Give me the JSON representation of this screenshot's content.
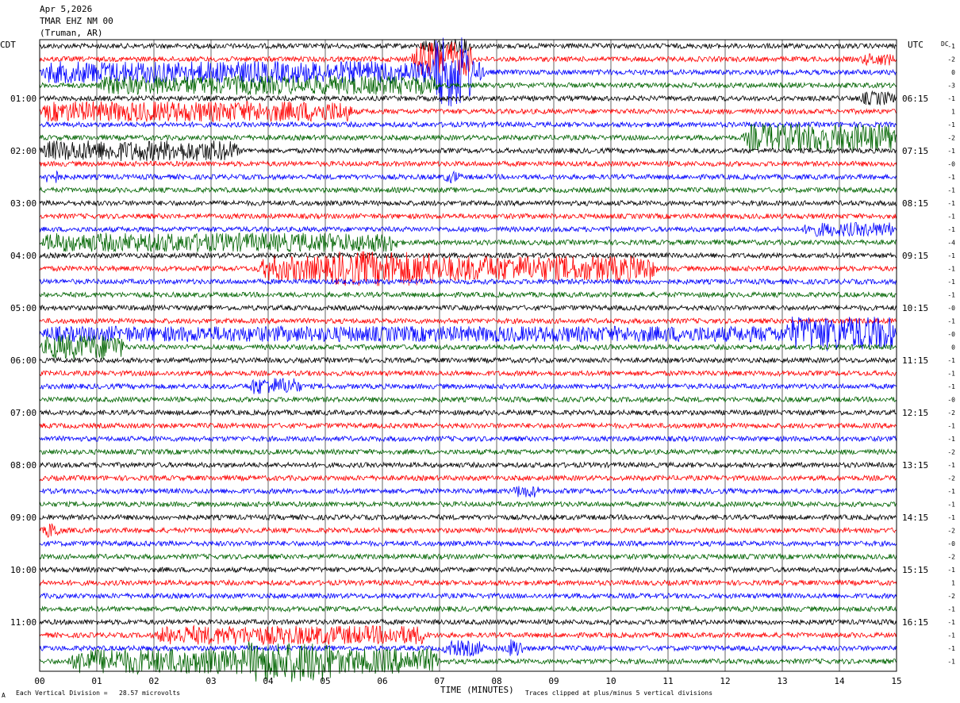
{
  "header": {
    "date": "Apr 5,2026",
    "station": "TMAR EHZ NM 00",
    "location": "(Truman, AR)"
  },
  "left_zone": "CDT",
  "right_zone": "UTC",
  "dc_header": "DC",
  "footer": {
    "xlabel": "TIME (MINUTES)",
    "scale_note": "Each Vertical Division =   28.57 microvolts",
    "clip_note": "Traces clipped at plus/minus 5 vertical divisions",
    "corner_mark": "A"
  },
  "colors": {
    "cycle": [
      "#000000",
      "#ff0000",
      "#0000ff",
      "#006400"
    ],
    "grid": "#000000"
  },
  "chart_data": {
    "type": "line",
    "title": "",
    "xlabel": "TIME (MINUTES)",
    "ylabel": "",
    "xlim": [
      0,
      15
    ],
    "x_ticks": [
      "00",
      "01",
      "02",
      "03",
      "04",
      "05",
      "06",
      "07",
      "08",
      "09",
      "10",
      "11",
      "12",
      "13",
      "14",
      "15"
    ],
    "trace_minutes": 15,
    "trace_count": 48,
    "left_hour_labels": [
      "01:00",
      "02:00",
      "03:00",
      "04:00",
      "05:00",
      "06:00",
      "07:00",
      "08:00",
      "09:00",
      "10:00",
      "11:00"
    ],
    "right_hour_labels": [
      "06:15",
      "07:15",
      "08:15",
      "09:15",
      "10:15",
      "11:15",
      "12:15",
      "13:15",
      "14:15",
      "15:15",
      "16:15"
    ],
    "dc_offsets": [
      "-1",
      "-2",
      "0",
      "-3",
      "-1",
      "1",
      "-1",
      "-2",
      "-1",
      "-0",
      "-1",
      "-1",
      "-1",
      "-1",
      "-1",
      "-4",
      "-1",
      "-1",
      "-1",
      "-1",
      "-0",
      "-1",
      "-0",
      "0",
      "-1",
      "-1",
      "-1",
      "-0",
      "-2",
      "-1",
      "-1",
      "-2",
      "-1",
      "-2",
      "-1",
      "-1",
      "-1",
      "-2",
      "-0",
      "-2",
      "-1",
      "1",
      "-2",
      "-1",
      "-1",
      "-1",
      "-1",
      "-1"
    ],
    "events": [
      {
        "trace": 0,
        "start": 6.6,
        "end": 7.6,
        "amp": 9
      },
      {
        "trace": 1,
        "start": 6.5,
        "end": 7.6,
        "amp": 22
      },
      {
        "trace": 1,
        "start": 14.3,
        "end": 15.0,
        "amp": 8
      },
      {
        "trace": 2,
        "start": 0.0,
        "end": 7.8,
        "amp": 14
      },
      {
        "trace": 2,
        "start": 6.8,
        "end": 7.6,
        "amp": 45
      },
      {
        "trace": 3,
        "start": 1.0,
        "end": 7.0,
        "amp": 12
      },
      {
        "trace": 4,
        "start": 14.3,
        "end": 15.0,
        "amp": 9
      },
      {
        "trace": 5,
        "start": 0.0,
        "end": 5.5,
        "amp": 13
      },
      {
        "trace": 7,
        "start": 12.3,
        "end": 15.0,
        "amp": 18
      },
      {
        "trace": 8,
        "start": 0.0,
        "end": 3.5,
        "amp": 13
      },
      {
        "trace": 10,
        "start": 0.0,
        "end": 0.4,
        "amp": 9
      },
      {
        "trace": 10,
        "start": 7.0,
        "end": 7.4,
        "amp": 8
      },
      {
        "trace": 14,
        "start": 13.3,
        "end": 15.0,
        "amp": 9
      },
      {
        "trace": 15,
        "start": 0.0,
        "end": 6.3,
        "amp": 12
      },
      {
        "trace": 17,
        "start": 3.8,
        "end": 10.8,
        "amp": 16
      },
      {
        "trace": 17,
        "start": 5.0,
        "end": 7.0,
        "amp": 22
      },
      {
        "trace": 22,
        "start": 0.0,
        "end": 15.0,
        "amp": 10
      },
      {
        "trace": 22,
        "start": 13.0,
        "end": 15.0,
        "amp": 22
      },
      {
        "trace": 23,
        "start": 0.0,
        "end": 1.5,
        "amp": 16
      },
      {
        "trace": 26,
        "start": 3.6,
        "end": 4.6,
        "amp": 11
      },
      {
        "trace": 34,
        "start": 8.2,
        "end": 8.8,
        "amp": 8
      },
      {
        "trace": 37,
        "start": 0.0,
        "end": 0.4,
        "amp": 10
      },
      {
        "trace": 45,
        "start": 2.0,
        "end": 6.8,
        "amp": 12
      },
      {
        "trace": 46,
        "start": 7.0,
        "end": 7.8,
        "amp": 10
      },
      {
        "trace": 46,
        "start": 8.1,
        "end": 8.5,
        "amp": 12
      },
      {
        "trace": 47,
        "start": 0.5,
        "end": 7.0,
        "amp": 16
      },
      {
        "trace": 47,
        "start": 3.5,
        "end": 5.2,
        "amp": 26
      }
    ]
  }
}
